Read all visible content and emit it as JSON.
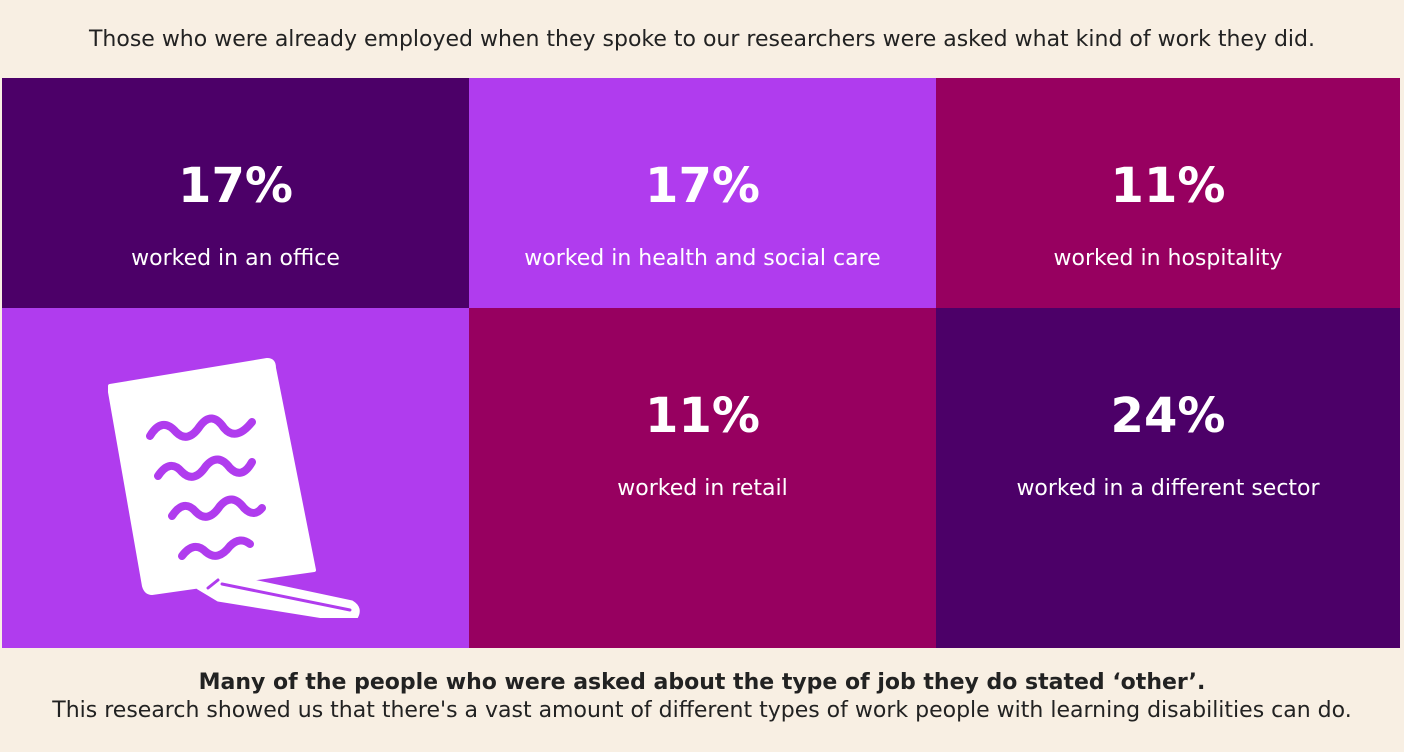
{
  "intro": "Those who were already employed when they spoke to our researchers were asked what kind of work they did.",
  "colors": {
    "background": "#f8efe3",
    "dark_purple": "#4c0068",
    "bright_purple": "#b03cee",
    "magenta": "#970060",
    "text_on_tile": "#ffffff"
  },
  "stats": [
    {
      "percent": "17%",
      "label": "worked in an office",
      "color": "#4c0068"
    },
    {
      "percent": "17%",
      "label": "worked in health and social care",
      "color": "#b03cee"
    },
    {
      "percent": "11%",
      "label": "worked in hospitality",
      "color": "#970060"
    },
    {
      "percent": "11%",
      "label": "worked in retail",
      "color": "#970060"
    },
    {
      "percent": "24%",
      "label": "worked in a different sector",
      "color": "#4c0068"
    }
  ],
  "illustration": {
    "icon": "paper-and-pencil-icon",
    "color": "#b03cee"
  },
  "footer": {
    "bold": "Many of the people who were asked about the type of job they do stated ‘other’.",
    "normal": "This research showed us that there's a vast amount of different types of work people with learning disabilities can do."
  }
}
